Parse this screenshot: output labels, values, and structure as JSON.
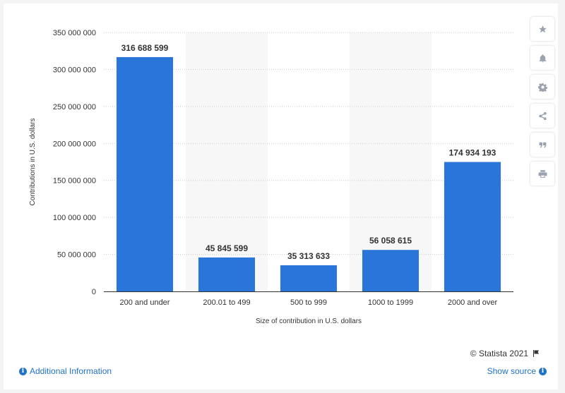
{
  "chart_data": {
    "type": "bar",
    "categories": [
      "200 and under",
      "200.01 to 499",
      "500 to 999",
      "1000 to 1999",
      "2000 and over"
    ],
    "values": [
      316688599,
      45845599,
      35313633,
      56058615,
      174934193
    ],
    "value_labels": [
      "316 688 599",
      "45 845 599",
      "35 313 633",
      "56 058 615",
      "174 934 193"
    ],
    "xlabel": "Size of contribution in U.S. dollars",
    "ylabel": "Contributions in U.S. dollars",
    "ylim": [
      0,
      350000000
    ],
    "yticks": [
      0,
      50000000,
      100000000,
      150000000,
      200000000,
      250000000,
      300000000,
      350000000
    ],
    "ytick_labels": [
      "0",
      "50 000 000",
      "100 000 000",
      "150 000 000",
      "200 000 000",
      "250 000 000",
      "300 000 000",
      "350 000 000"
    ],
    "bar_color": "#2a75d9",
    "grid": true,
    "alternating_bands": true
  },
  "toolbar": {
    "items": [
      "star-icon",
      "bell-icon",
      "gear-icon",
      "share-icon",
      "quote-icon",
      "print-icon"
    ]
  },
  "footer": {
    "copyright": "© Statista 2021",
    "additional_info": "Additional Information",
    "show_source": "Show source"
  }
}
